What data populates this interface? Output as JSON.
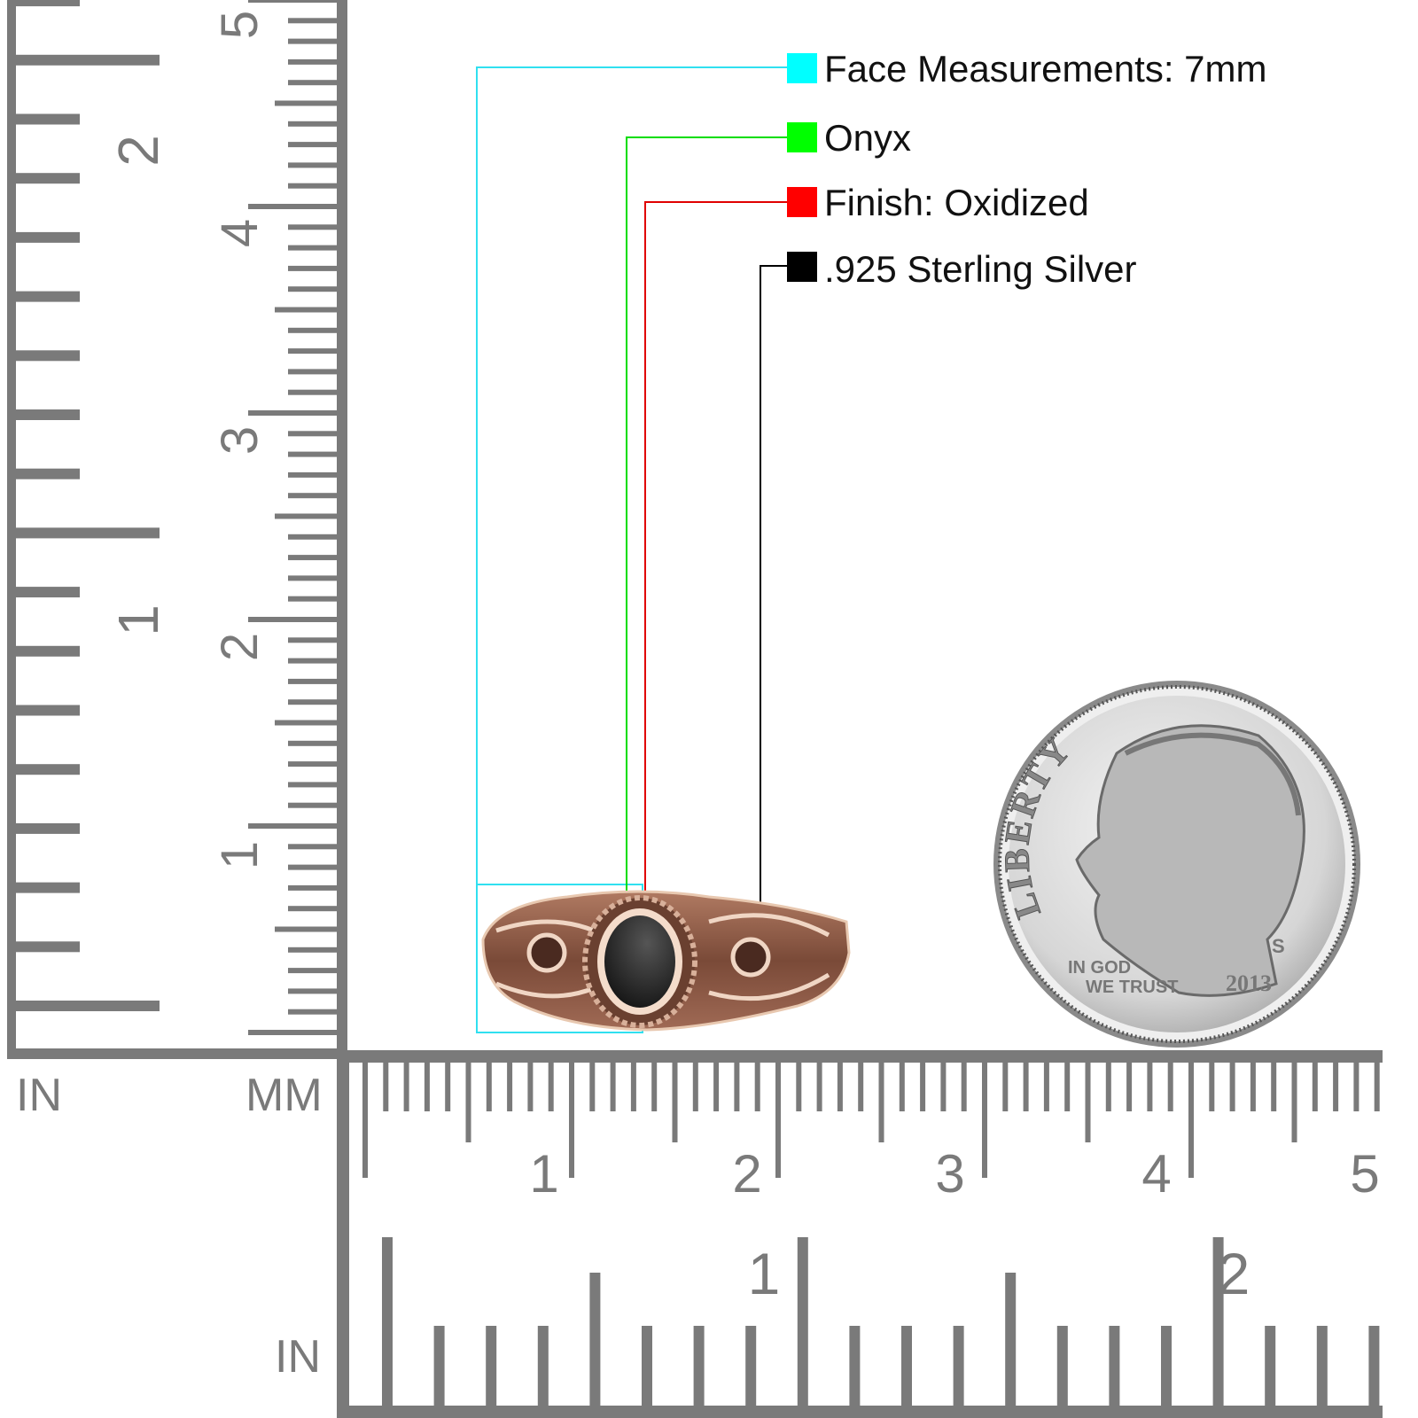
{
  "legend": {
    "items": [
      {
        "label": "Face Measurements: 7mm",
        "color": "#00ffff"
      },
      {
        "label": "Onyx",
        "color": "#00ff00"
      },
      {
        "label": "Finish: Oxidized",
        "color": "#ff0000"
      },
      {
        "label": ".925 Sterling Silver",
        "color": "#000000"
      }
    ]
  },
  "rulers": {
    "color": "#7a7a7a",
    "left_unit_inch": "IN",
    "left_unit_mm": "MM",
    "bottom_unit_inch": "IN",
    "vertical_cm_labels": [
      "1",
      "2",
      "3",
      "4",
      "5"
    ],
    "vertical_inch_labels": [
      "1",
      "2"
    ],
    "horizontal_cm_labels": [
      "1",
      "2",
      "3",
      "4",
      "5"
    ],
    "horizontal_inch_labels": [
      "1",
      "2"
    ]
  },
  "coin": {
    "liberty": "LIBERTY",
    "motto_line1": "IN GOD",
    "motto_line2": "WE TRUST",
    "year": "2013",
    "mint_mark": "S"
  },
  "product": {
    "stone_color": "#1e1e1e",
    "metal_color": "#8a5a48"
  }
}
